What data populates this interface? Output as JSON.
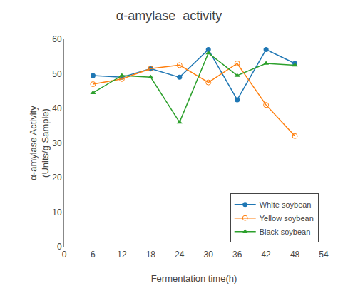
{
  "chart_data": {
    "type": "line",
    "title": "α-amylase  activity",
    "x_label": "Fermentation time(h)",
    "y_label": "α-amylase Activity\n(Units/g Sample)",
    "x": [
      6,
      12,
      18,
      24,
      30,
      36,
      42,
      48
    ],
    "series": [
      {
        "name": "White soybean",
        "values": [
          49.5,
          49.0,
          51.5,
          49.0,
          57.0,
          42.5,
          57.0,
          53.0
        ],
        "marker": "circle",
        "line_style": "solid"
      },
      {
        "name": "Yellow soybean",
        "values": [
          47.0,
          48.5,
          51.5,
          52.5,
          47.5,
          53.0,
          41.0,
          32.0
        ],
        "marker": "circle-open",
        "line_style": "solid"
      },
      {
        "name": "Black soybean",
        "values": [
          44.5,
          49.5,
          49.0,
          36.0,
          56.0,
          49.5,
          53.0,
          52.5
        ],
        "marker": "triangle-up",
        "line_style": "solid"
      }
    ],
    "xlim": [
      0,
      54
    ],
    "ylim": [
      0,
      60
    ],
    "xticks": [
      0,
      6,
      12,
      18,
      24,
      30,
      36,
      42,
      48,
      54
    ],
    "yticks": [
      0,
      10,
      20,
      30,
      40,
      50,
      60
    ],
    "grid": false,
    "legend": "lower right"
  }
}
